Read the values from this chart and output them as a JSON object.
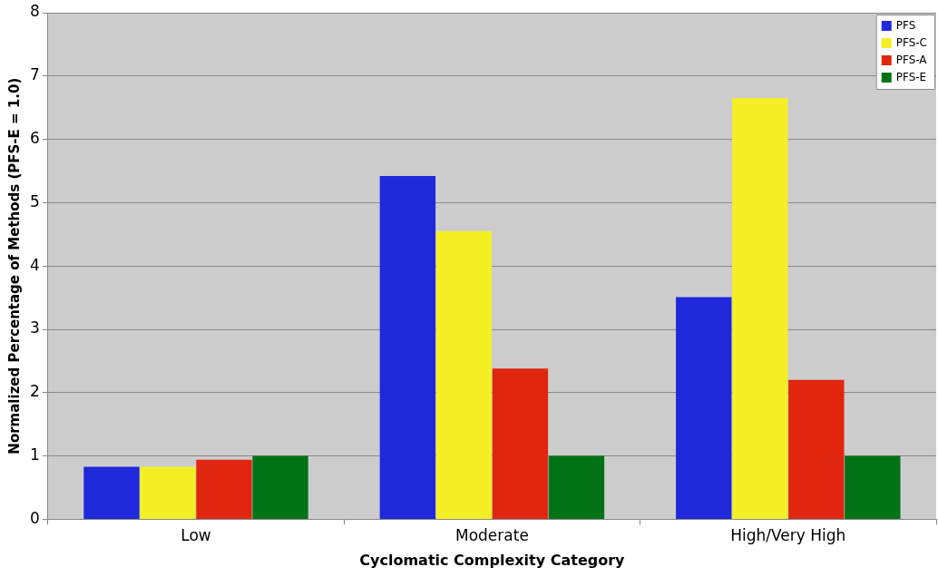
{
  "chart_data": {
    "type": "bar",
    "xlabel": "Cyclomatic Complexity Category",
    "ylabel": "Normalized Percentage of Methods (PFS-E = 1.0)",
    "categories": [
      "Low",
      "Moderate",
      "High/Very High"
    ],
    "series": [
      {
        "name": "PFS",
        "color": "#1f29d9",
        "values": [
          0.83,
          5.42,
          3.51
        ]
      },
      {
        "name": "PFS-C",
        "color": "#f5ef26",
        "values": [
          0.83,
          4.55,
          6.65
        ]
      },
      {
        "name": "PFS-A",
        "color": "#e0260f",
        "values": [
          0.94,
          2.38,
          2.2
        ]
      },
      {
        "name": "PFS-E",
        "color": "#007317",
        "values": [
          1.0,
          1.0,
          1.0
        ]
      }
    ],
    "ylim": [
      0,
      8
    ],
    "yticks": [
      0,
      1,
      2,
      3,
      4,
      5,
      6,
      7,
      8
    ],
    "grid": "y",
    "legend": "top right"
  }
}
